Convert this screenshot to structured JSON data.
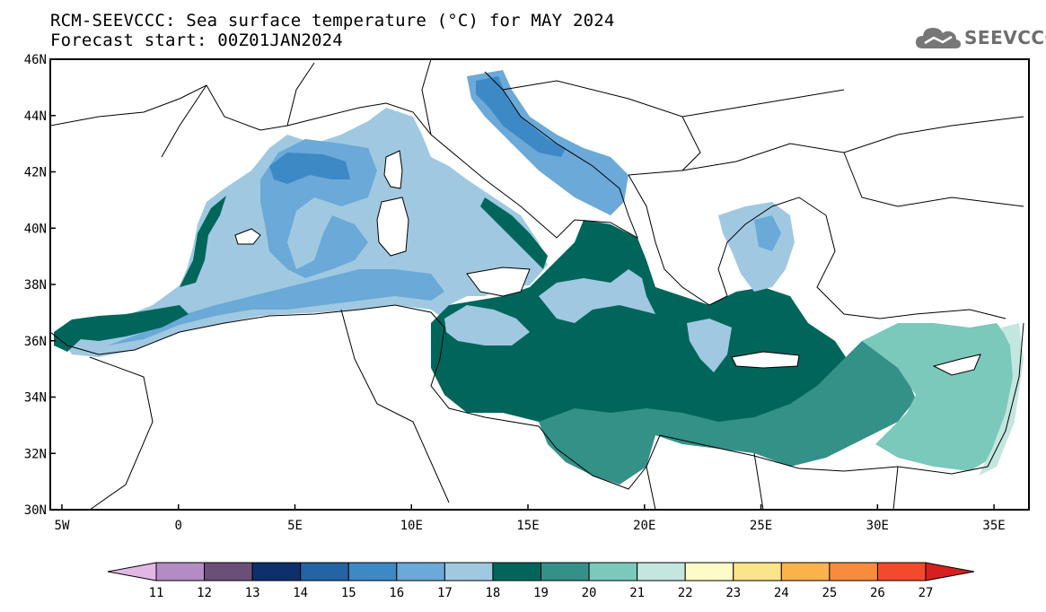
{
  "title_line1": "RCM-SEEVCCC: Sea surface temperature (°C) for MAY 2024",
  "title_line2": "Forecast start: 00Z01JAN2024",
  "logo": {
    "text": "SEEVCCC",
    "icon": "cloud-icon",
    "color": "#707070"
  },
  "map": {
    "lon_range": [
      -5.5,
      36.5
    ],
    "lat_range": [
      30,
      46
    ],
    "x_ticks": [
      "5W",
      "0",
      "5E",
      "10E",
      "15E",
      "20E",
      "25E",
      "30E",
      "35E"
    ],
    "y_ticks": [
      "30N",
      "32N",
      "34N",
      "36N",
      "38N",
      "40N",
      "42N",
      "44N",
      "46N"
    ],
    "land_color": "#ffffff",
    "coastline_color": "#000000"
  },
  "colorbar": {
    "labels": [
      "11",
      "12",
      "13",
      "14",
      "15",
      "16",
      "17",
      "18",
      "19",
      "20",
      "21",
      "22",
      "23",
      "24",
      "25",
      "26",
      "27"
    ],
    "colors": [
      "#e3b7e3",
      "#b48cc4",
      "#6b4f79",
      "#0d2f6b",
      "#2264a4",
      "#3d89c6",
      "#6aa9d8",
      "#a0c9e1",
      "#00665b",
      "#339188",
      "#7ac9bb",
      "#c3e6df",
      "#fdfbc7",
      "#fbe48a",
      "#fcb24b",
      "#f88c3b",
      "#f24a2b",
      "#d81f1f"
    ]
  },
  "sea_colors": {
    "t16": "#3d89c6",
    "t17": "#6aa9d8",
    "t18": "#a0c9e1",
    "t19": "#00665b",
    "t20": "#339188",
    "t21": "#7ac9bb",
    "t22": "#c3e6df"
  }
}
